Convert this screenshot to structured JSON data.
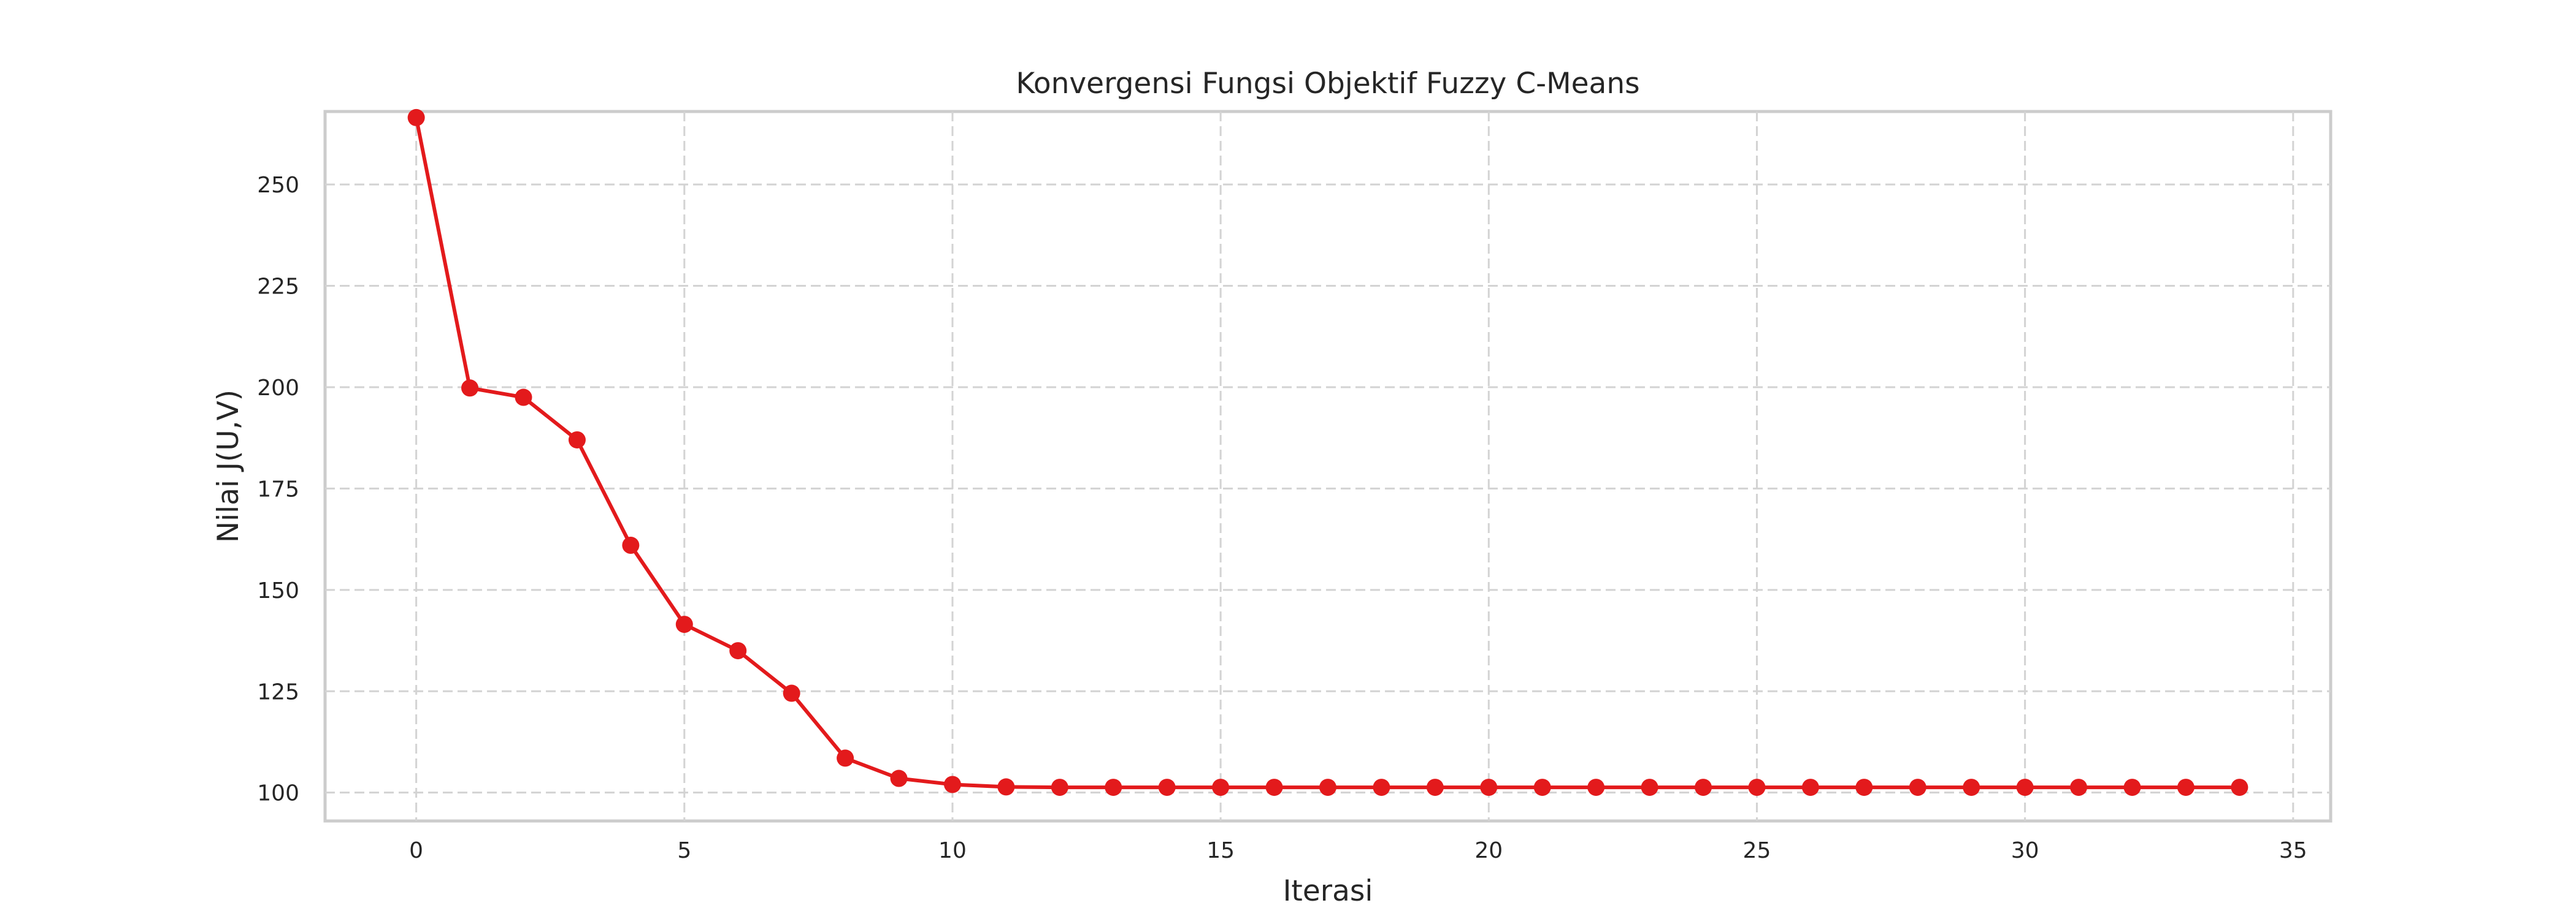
{
  "chart_data": {
    "type": "line",
    "title": "Konvergensi Fungsi Objektif Fuzzy C-Means",
    "xlabel": "Iterasi",
    "ylabel": "Nilai J(U,V)",
    "xlim": [
      -1.7,
      35.7
    ],
    "ylim": [
      93,
      268
    ],
    "xticks": [
      0,
      5,
      10,
      15,
      20,
      25,
      30,
      35
    ],
    "yticks": [
      100,
      125,
      150,
      175,
      200,
      225,
      250
    ],
    "grid": true,
    "legend": "none",
    "series": [
      {
        "color": "#e31a1c",
        "marker": "circle",
        "x": [
          0,
          1,
          2,
          3,
          4,
          5,
          6,
          7,
          8,
          9,
          10,
          11,
          12,
          13,
          14,
          15,
          16,
          17,
          18,
          19,
          20,
          21,
          22,
          23,
          24,
          25,
          26,
          27,
          28,
          29,
          30,
          31,
          32,
          33,
          34
        ],
        "y": [
          266.5,
          199.8,
          197.5,
          187,
          161,
          141.5,
          135,
          124.5,
          108.5,
          103.5,
          102,
          101.4,
          101.3,
          101.3,
          101.3,
          101.3,
          101.3,
          101.3,
          101.3,
          101.3,
          101.3,
          101.3,
          101.3,
          101.3,
          101.3,
          101.3,
          101.3,
          101.3,
          101.3,
          101.3,
          101.3,
          101.3,
          101.3,
          101.3,
          101.3
        ]
      }
    ]
  }
}
